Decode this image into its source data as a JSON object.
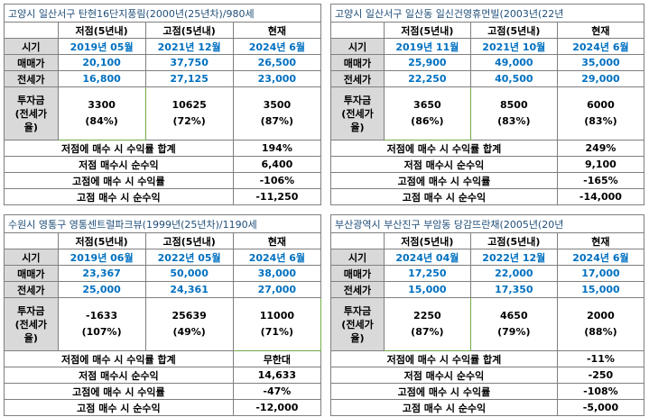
{
  "panels": [
    {
      "title": "고양시 일산서구 탄현16단지풍림(2000년(25년차)/980세",
      "headers": [
        "",
        "저점(5년내)",
        "고점(5년내)",
        "현재"
      ],
      "period_label": "시기",
      "periods": [
        "2019년 05월",
        "2021년 12월",
        "2024년 6월"
      ],
      "sale_label": "매매가",
      "sale": [
        "20,100",
        "37,750",
        "26,500"
      ],
      "jeonse_label": "전세가",
      "jeonse": [
        "16,800",
        "27,125",
        "23,000"
      ],
      "invest_label": "투자금 (전세가율)",
      "invest_label_lines": [
        "투자금",
        "(전세가",
        "율)"
      ],
      "invest": [
        [
          "3300",
          "(84%)"
        ],
        [
          "10625",
          "(72%)"
        ],
        [
          "3500",
          "(87%)"
        ]
      ],
      "summary": [
        {
          "label": "저점에 매수 시 수익률 합계",
          "value": "194%"
        },
        {
          "label": "저점 매수시 순수익",
          "value": "6,400"
        },
        {
          "label": "고점에 매수 시 수익률",
          "value": "-106%"
        },
        {
          "label": "고점 매수 시 순수익",
          "value": "-11,250"
        }
      ]
    },
    {
      "title": "고양시 일산서구 일산동 일신건영휴먼빌(2003년(22년",
      "headers": [
        "",
        "저점(5년내)",
        "고점(5년내)",
        "현재"
      ],
      "period_label": "시기",
      "periods": [
        "2019년 11월",
        "2021년 10월",
        "2024년 6월"
      ],
      "sale_label": "매매가",
      "sale": [
        "25,900",
        "49,000",
        "35,000"
      ],
      "jeonse_label": "전세가",
      "jeonse": [
        "22,250",
        "40,500",
        "29,000"
      ],
      "invest_label": "투자금 (전세가율)",
      "invest_label_lines": [
        "투자금",
        "(전세가",
        "율)"
      ],
      "invest": [
        [
          "3650",
          "(86%)"
        ],
        [
          "8500",
          "(83%)"
        ],
        [
          "6000",
          "(83%)"
        ]
      ],
      "summary": [
        {
          "label": "저점에 매수 시 수익률 합계",
          "value": "249%"
        },
        {
          "label": "저점 매수시 순수익",
          "value": "9,100"
        },
        {
          "label": "고점에 매수 시 수익률",
          "value": "-165%"
        },
        {
          "label": "고점 매수 시 순수익",
          "value": "-14,000"
        }
      ]
    },
    {
      "title": "수원시 영통구 영통센트럴파크뷰(1999년(25년차)/1190세",
      "headers": [
        "",
        "저점(5년내)",
        "고점(5년내)",
        "현재"
      ],
      "period_label": "시기",
      "periods": [
        "2019년 06월",
        "2022년 05월",
        "2024년 6월"
      ],
      "sale_label": "매매가",
      "sale": [
        "23,367",
        "50,000",
        "38,000"
      ],
      "jeonse_label": "전세가",
      "jeonse": [
        "25,000",
        "24,361",
        "27,000"
      ],
      "invest_label": "투자금 (전세가율)",
      "invest_label_lines": [
        "투자금",
        "(전세가",
        "율)"
      ],
      "invest": [
        [
          "-1633",
          "(107%)"
        ],
        [
          "25639",
          "(49%)"
        ],
        [
          "11000",
          "(71%)"
        ]
      ],
      "summary": [
        {
          "label": "저점에 매수 시 수익률 합계",
          "value": "무한대"
        },
        {
          "label": "저점 매수시 순수익",
          "value": "14,633"
        },
        {
          "label": "고점에 매수 시 수익률",
          "value": "-47%"
        },
        {
          "label": "고점 매수 시 순수익",
          "value": "-12,000"
        }
      ]
    },
    {
      "title": "부산광역시 부산진구 부암동 당감뜨란채(2005년(20년",
      "headers": [
        "",
        "저점(5년내)",
        "고점(5년내)",
        "현재"
      ],
      "period_label": "시기",
      "periods": [
        "2024년 04월",
        "2022년 12월",
        "2024년 6월"
      ],
      "sale_label": "매매가",
      "sale": [
        "17,250",
        "22,000",
        "17,000"
      ],
      "jeonse_label": "전세가",
      "jeonse": [
        "15,000",
        "17,350",
        "15,000"
      ],
      "invest_label": "투자금 (전세가율)",
      "invest_label_lines": [
        "투자금",
        "(전세가",
        "율)"
      ],
      "invest": [
        [
          "2250",
          "(87%)"
        ],
        [
          "4650",
          "(79%)"
        ],
        [
          "2000",
          "(88%)"
        ]
      ],
      "summary": [
        {
          "label": "저점에 매수 시 수익률 합계",
          "value": "-11%"
        },
        {
          "label": "저점 매수시 순수익",
          "value": "-250"
        },
        {
          "label": "고점에 매수 시 수익률",
          "value": "-108%"
        },
        {
          "label": "고점 매수 시 순수익",
          "value": "-5,000"
        }
      ]
    }
  ],
  "colors": {
    "title": "#1f4e79",
    "value_blue": "#0070c0",
    "label_gray": "#d9d9d9",
    "border": "#7f7f7f",
    "invest_border": "#70ad47"
  }
}
